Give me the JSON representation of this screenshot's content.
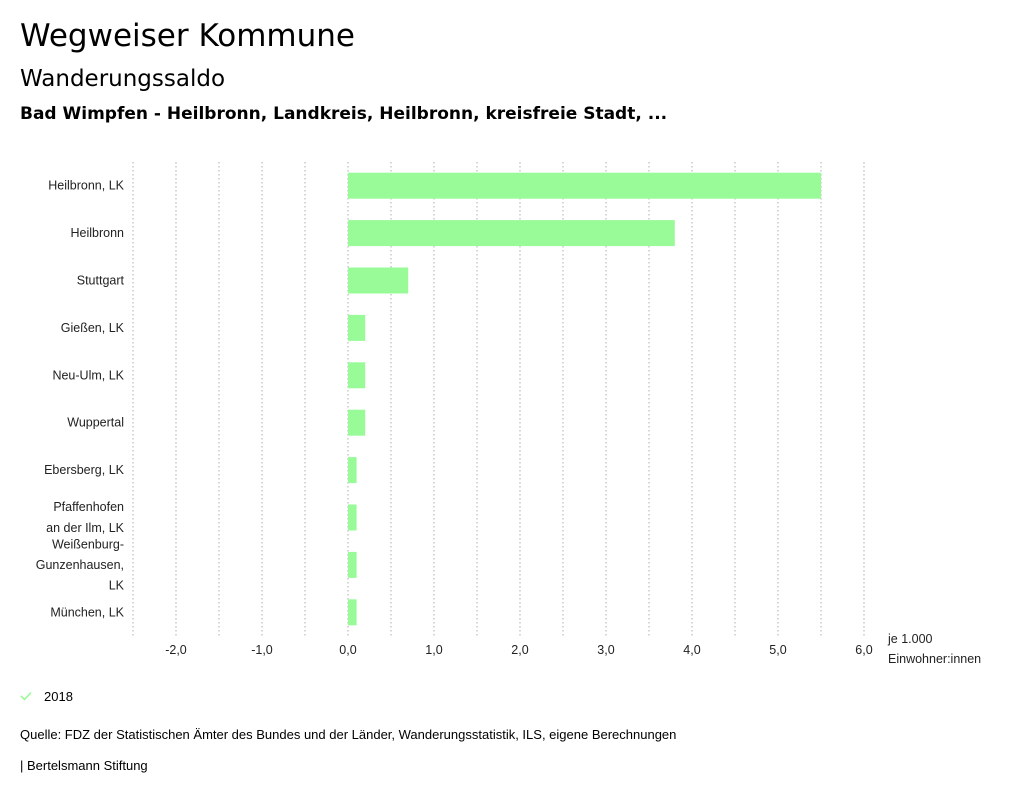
{
  "header": {
    "title": "Wegweiser Kommune",
    "subtitle": "Wanderungssaldo",
    "region": "Bad Wimpfen - Heilbronn, Landkreis, Heilbronn, kreisfreie Stadt, ..."
  },
  "legend": {
    "label": "2018",
    "icon": "check-icon"
  },
  "footer": {
    "source": "Quelle: FDZ der Statistischen Ämter des Bundes und der Länder, Wanderungsstatistik, ILS, eigene Berechnungen",
    "brand": "| Bertelsmann Stiftung"
  },
  "colors": {
    "bar": "#98fb98",
    "grid": "#9a9a9a",
    "text": "#222222"
  },
  "chart_data": {
    "type": "bar",
    "orientation": "horizontal",
    "title": "Wanderungssaldo",
    "xlabel": "je 1.000 Einwohner:innen",
    "xlabel_lines": [
      "je 1.000",
      "Einwohner:innen"
    ],
    "xlim": [
      -2.5,
      6.0
    ],
    "xticks": [
      -2,
      -1,
      0,
      1,
      2,
      3,
      4,
      5,
      6
    ],
    "xtick_labels": [
      "-2,0",
      "-1,0",
      "0,0",
      "1,0",
      "2,0",
      "3,0",
      "4,0",
      "5,0",
      "6,0"
    ],
    "grid": true,
    "categories": [
      "Heilbronn, LK",
      "Heilbronn",
      "Stuttgart",
      "Gießen, LK",
      "Neu-Ulm, LK",
      "Wuppertal",
      "Ebersberg, LK",
      "Pfaffenhofen an der Ilm, LK",
      "Weißenburg-Gunzenhausen, LK",
      "München, LK"
    ],
    "category_lines": [
      [
        "Heilbronn, LK"
      ],
      [
        "Heilbronn"
      ],
      [
        "Stuttgart"
      ],
      [
        "Gießen, LK"
      ],
      [
        "Neu-Ulm, LK"
      ],
      [
        "Wuppertal"
      ],
      [
        "Ebersberg, LK"
      ],
      [
        "Pfaffenhofen",
        "an der Ilm, LK"
      ],
      [
        "Weißenburg-",
        "Gunzenhausen,",
        "LK"
      ],
      [
        "München, LK"
      ]
    ],
    "series": [
      {
        "name": "2018",
        "values": [
          5.5,
          3.8,
          0.7,
          0.2,
          0.2,
          0.2,
          0.1,
          0.1,
          0.1,
          0.1
        ]
      }
    ]
  }
}
